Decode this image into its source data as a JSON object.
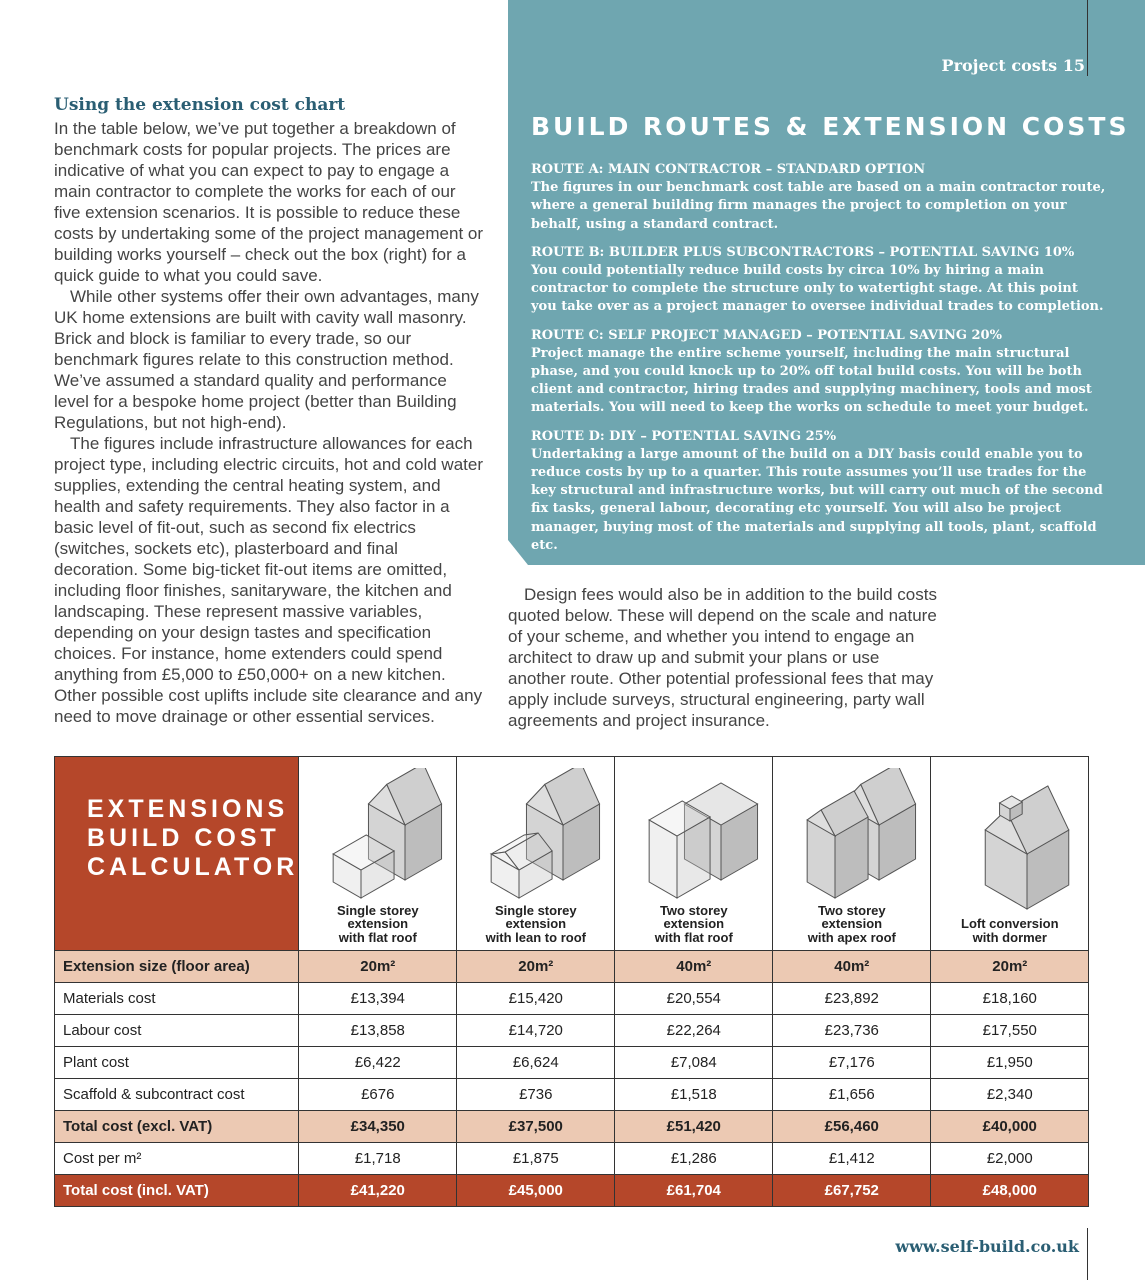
{
  "header": {
    "section": "Project costs",
    "page": "15"
  },
  "left_column": {
    "heading": "Using the extension cost chart",
    "paragraphs": [
      "In the table below, we’ve put together a breakdown of benchmark costs for popular projects. The prices are indicative of what you can expect to pay to engage a main contractor to complete the works for each of our five extension scenarios. It is possible to reduce these costs by undertaking some of the project management or building works yourself – check out the box (right) for a quick guide to what you could save.",
      "While other systems offer their own advantages, many UK home extensions are built with cavity wall masonry. Brick and block is familiar to every trade, so our benchmark figures relate to this construction method. We’ve assumed a standard quality and performance level for a bespoke home project (better than Building Regulations, but not high-end).",
      "The figures include infrastructure allowances for each project type, including electric circuits, hot and cold water supplies, extending the central heating system, and health and safety requirements. They also factor in a basic level of fit-out, such as second fix electrics (switches, sockets etc), plasterboard and final decoration. Some big-ticket fit-out items are omitted, including floor finishes, sanitaryware, the kitchen and landscaping. These represent massive variables, depending on your design tastes and specification choices. For instance, home extenders could spend anything from £5,000 to £50,000+ on a new kitchen. Other possible cost uplifts include site clearance and any need to move drainage or other essential services."
    ]
  },
  "routes_box": {
    "title": "BUILD ROUTES & EXTENSION COSTS",
    "routes": [
      {
        "heading": "ROUTE A: MAIN CONTRACTOR – STANDARD OPTION",
        "text": "The figures in our benchmark cost table are based on a main contractor route, where a general building firm manages the project to completion on your behalf, using a standard contract."
      },
      {
        "heading": "ROUTE B: BUILDER PLUS SUBCONTRACTORS – POTENTIAL SAVING 10%",
        "text": "You could potentially reduce build costs by circa 10% by hiring a main contractor to complete the structure only to watertight stage. At this point you take over as a project manager to oversee individual trades to completion."
      },
      {
        "heading": "ROUTE C: SELF PROJECT MANAGED – POTENTIAL SAVING 20%",
        "text": "Project manage the entire scheme yourself, including the main structural phase, and you could knock up to 20% off total build costs. You will be both client and contractor, hiring trades and supplying machinery, tools and most materials. You will need to keep the works on schedule to meet your budget."
      },
      {
        "heading": "ROUTE D: DIY – POTENTIAL SAVING 25%",
        "text": "Undertaking a large amount of the build on a DIY basis could enable you to reduce costs by up to a quarter. This route assumes you’ll use trades for the key structural and infrastructure works, but will carry out much of the second fix tasks, general labour, decorating etc yourself. You will also be project manager, buying most of the materials and supplying all tools, plant, scaffold etc."
      }
    ]
  },
  "right_column": {
    "paragraph": "Design fees would also be in addition to the build costs quoted below. These will depend on the scale and nature of your scheme, and whether you intend to engage an architect to draw up and submit your plans or use another route. Other potential professional fees that may apply include surveys, structural engineering, party wall agreements and project insurance."
  },
  "table": {
    "title": "EXTENSIONS BUILD COST CALCULATOR",
    "columns": [
      "Single storey\nextension\nwith flat roof",
      "Single storey\nextension\nwith lean to roof",
      "Two storey\nextension\nwith flat roof",
      "Two storey\nextension\nwith apex roof",
      "Loft conversion\nwith dormer"
    ],
    "rows": [
      {
        "label": "Extension size (floor area)",
        "values": [
          "20m²",
          "20m²",
          "40m²",
          "40m²",
          "20m²"
        ]
      },
      {
        "label": "Materials cost",
        "values": [
          "£13,394",
          "£15,420",
          "£20,554",
          "£23,892",
          "£18,160"
        ]
      },
      {
        "label": "Labour cost",
        "values": [
          "£13,858",
          "£14,720",
          "£22,264",
          "£23,736",
          "£17,550"
        ]
      },
      {
        "label": "Plant cost",
        "values": [
          "£6,422",
          "£6,624",
          "£7,084",
          "£7,176",
          "£1,950"
        ]
      },
      {
        "label": "Scaffold & subcontract cost",
        "values": [
          "£676",
          "£736",
          "£1,518",
          "£1,656",
          "£2,340"
        ]
      },
      {
        "label": "Total cost (excl. VAT)",
        "values": [
          "£34,350",
          "£37,500",
          "£51,420",
          "£56,460",
          "£40,000"
        ]
      },
      {
        "label": "Cost per m²",
        "values": [
          "£1,718",
          "£1,875",
          "£1,286",
          "£1,412",
          "£2,000"
        ]
      },
      {
        "label": "Total cost (incl. VAT)",
        "values": [
          "£41,220",
          "£45,000",
          "£61,704",
          "£67,752",
          "£48,000"
        ]
      }
    ]
  },
  "footer": {
    "url": "www.self-build.co.uk"
  }
}
